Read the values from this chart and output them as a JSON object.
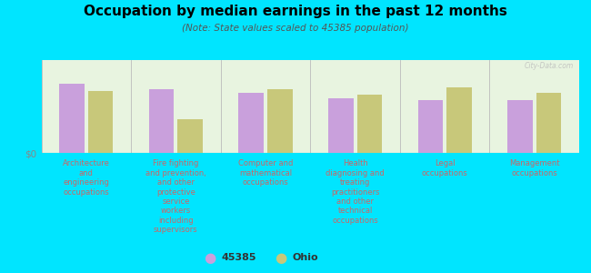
{
  "title": "Occupation by median earnings in the past 12 months",
  "subtitle": "(Note: State values scaled to 45385 population)",
  "background_color": "#00e5ff",
  "plot_bg_color": "#e8f4e0",
  "bar_color_45385": "#c9a0dc",
  "bar_color_ohio": "#c8c87a",
  "ylabel": "$0",
  "categories": [
    "Architecture\nand\nengineering\noccupations",
    "Fire fighting\nand prevention,\nand other\nprotective\nservice\nworkers\nincluding\nsupervisors",
    "Computer and\nmathematical\noccupations",
    "Health\ndiagnosing and\ntreating\npractitioners\nand other\ntechnical\noccupations",
    "Legal\noccupations",
    "Management\noccupations"
  ],
  "values_45385": [
    0.78,
    0.72,
    0.68,
    0.62,
    0.6,
    0.6
  ],
  "values_ohio": [
    0.7,
    0.38,
    0.72,
    0.66,
    0.74,
    0.68
  ],
  "legend_labels": [
    "45385",
    "Ohio"
  ],
  "watermark": "City-Data.com",
  "label_color": "#888888",
  "tick_label_color": "#cc6666"
}
